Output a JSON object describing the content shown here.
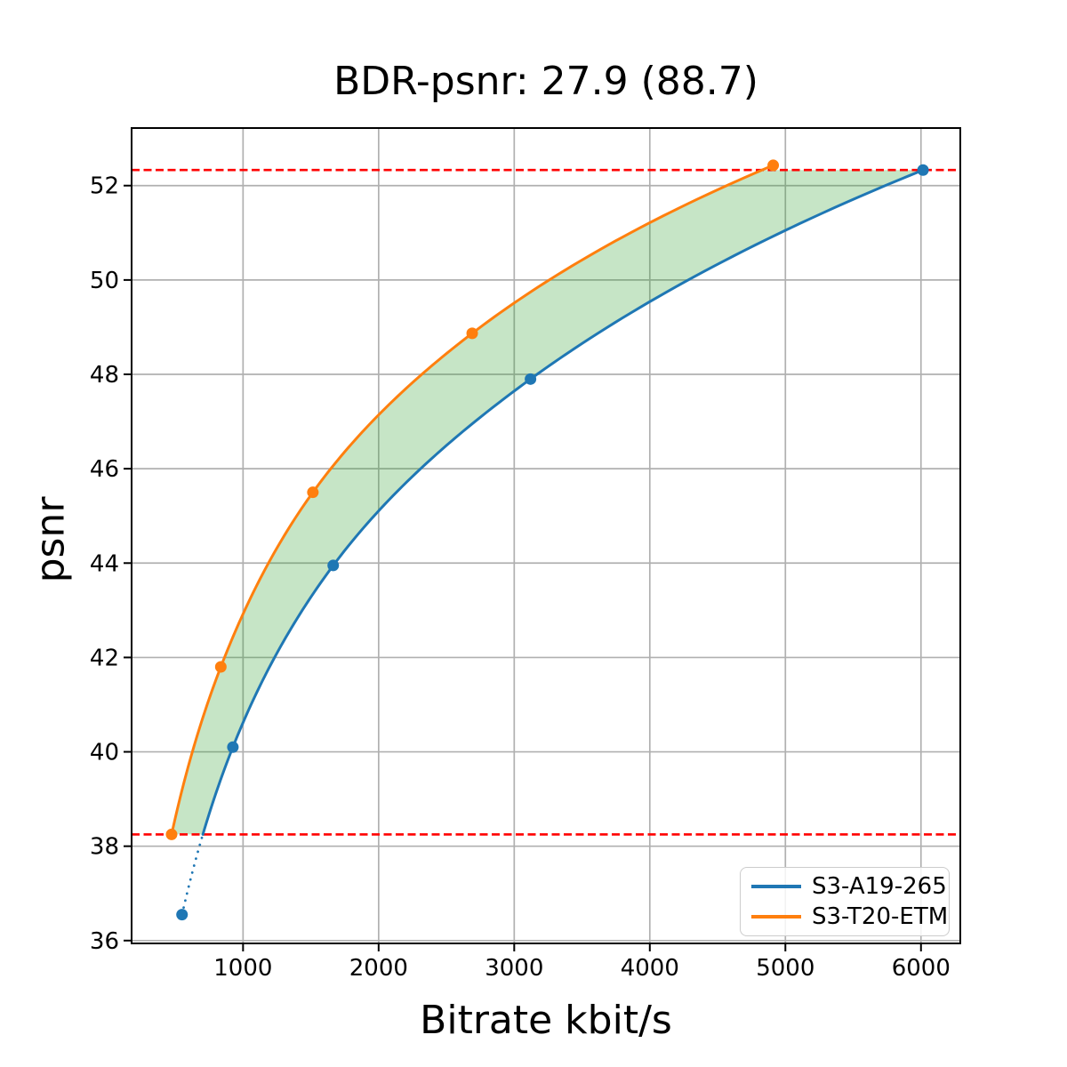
{
  "chart_data": {
    "type": "line",
    "title": "BDR-psnr: 27.9 (88.7)",
    "xlabel": "Bitrate kbit/s",
    "ylabel": "psnr",
    "xlim": [
      178,
      6290
    ],
    "ylim": [
      35.94,
      53.22
    ],
    "xticks": [
      1000,
      2000,
      3000,
      4000,
      5000,
      6000
    ],
    "yticks": [
      36,
      38,
      40,
      42,
      44,
      46,
      48,
      50,
      52
    ],
    "grid": true,
    "legend": {
      "position": "lower right",
      "entries": [
        "S3-A19-265",
        "S3-T20-ETM"
      ]
    },
    "series": [
      {
        "name": "S3-A19-265",
        "color": "#1f77b4",
        "points": [
          [
            550,
            36.55
          ],
          [
            925,
            40.1
          ],
          [
            1665,
            43.95
          ],
          [
            3120,
            47.9
          ],
          [
            6015,
            52.33
          ]
        ]
      },
      {
        "name": "S3-T20-ETM",
        "color": "#ff7f0e",
        "points": [
          [
            473,
            38.25
          ],
          [
            836,
            41.8
          ],
          [
            1515,
            45.5
          ],
          [
            2690,
            48.87
          ],
          [
            4910,
            52.43
          ]
        ]
      }
    ],
    "bd_region": {
      "lower_psnr": 38.25,
      "upper_psnr": 52.33,
      "fill_color": "#2ca02c",
      "fill_opacity": 0.27,
      "anchor_line_color": "#ff0000",
      "anchor_line_style": "dashed"
    },
    "out_of_range_style": "dotted"
  },
  "colors": {
    "grid": "#b0b0b0",
    "spine": "#000000",
    "text": "#000000",
    "legend_border": "#cccccc",
    "background": "#ffffff"
  }
}
